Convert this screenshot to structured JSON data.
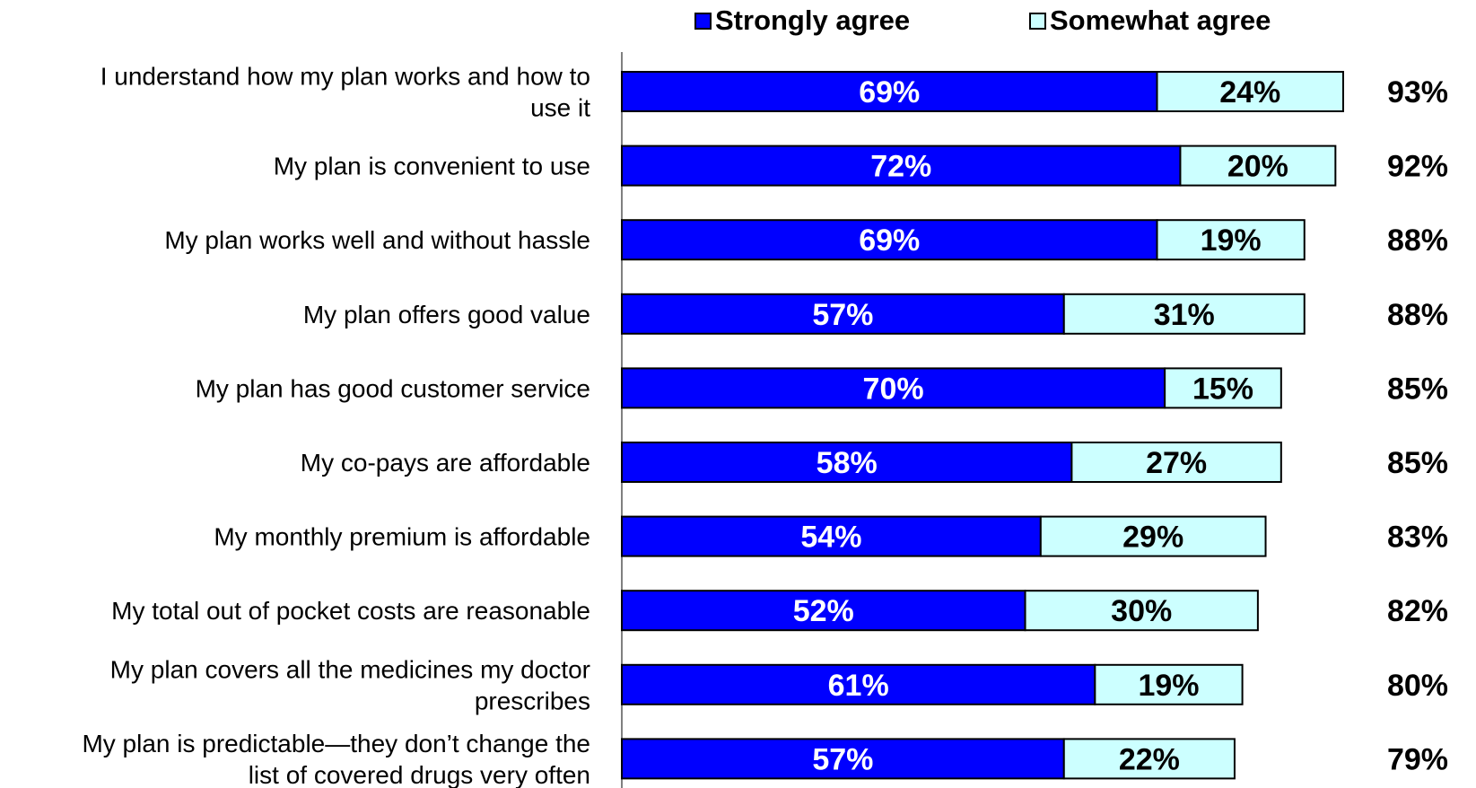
{
  "chart_data": {
    "type": "bar",
    "orientation": "horizontal",
    "stacked": true,
    "categories": [
      "I understand how my plan works and how to use it",
      "My plan is convenient to use",
      "My plan works well and without hassle",
      "My plan offers good value",
      "My plan has good customer service",
      "My co-pays are affordable",
      "My monthly premium is affordable",
      "My total out of pocket costs are reasonable",
      "My plan covers all the medicines my doctor prescribes",
      "My plan is predictable—they don’t change the list of covered drugs very often"
    ],
    "category_label_lines": [
      [
        "I understand how my plan works and how to",
        "use it"
      ],
      [
        "My plan is convenient to use"
      ],
      [
        "My plan works well and without hassle"
      ],
      [
        "My plan offers good value"
      ],
      [
        "My plan has good customer service"
      ],
      [
        "My co-pays are affordable"
      ],
      [
        "My monthly premium is affordable"
      ],
      [
        "My total out of pocket costs are reasonable"
      ],
      [
        "My plan covers all the medicines my doctor",
        "prescribes"
      ],
      [
        "My plan is predictable—they don’t change the",
        "list of covered drugs very often"
      ]
    ],
    "series": [
      {
        "name": "Strongly agree",
        "color": "#0000ff",
        "values": [
          69,
          72,
          69,
          57,
          70,
          58,
          54,
          52,
          61,
          57
        ],
        "labels": [
          "69%",
          "72%",
          "69%",
          "57%",
          "70%",
          "58%",
          "54%",
          "52%",
          "61%",
          "57%"
        ]
      },
      {
        "name": "Somewhat agree",
        "color": "#ccffff",
        "values": [
          24,
          20,
          19,
          31,
          15,
          27,
          29,
          30,
          19,
          22
        ],
        "labels": [
          "24%",
          "20%",
          "19%",
          "31%",
          "15%",
          "27%",
          "29%",
          "30%",
          "19%",
          "22%"
        ]
      }
    ],
    "totals": [
      93,
      92,
      88,
      88,
      85,
      85,
      83,
      82,
      80,
      79
    ],
    "total_labels": [
      "93%",
      "92%",
      "88%",
      "88%",
      "85%",
      "85%",
      "83%",
      "82%",
      "80%",
      "79%"
    ],
    "xlim": [
      0,
      93
    ],
    "grid": false,
    "legend_position": "top"
  }
}
